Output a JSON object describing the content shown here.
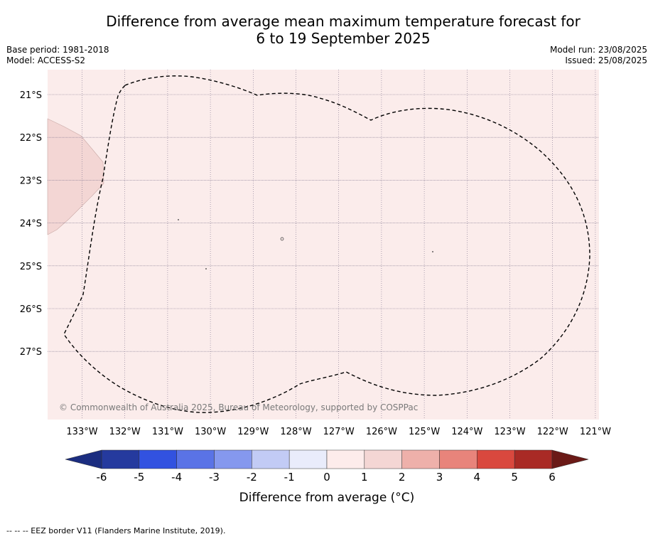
{
  "title_line1": "Difference from average mean maximum temperature forecast for",
  "title_line2": "6 to 19 September 2025",
  "base_period": "Base period: 1981-2018",
  "model": "Model: ACCESS-S2",
  "model_run": "Model run: 23/08/2025",
  "issued": "Issued: 25/08/2025",
  "copyright": "© Commonwealth of Australia 2025, Bureau of Meteorology, supported by COSPPac",
  "footer_note": "-- -- -- EEZ border V11 (Flanders Marine Institute, 2019).",
  "map": {
    "lon_labels": [
      "133°W",
      "132°W",
      "131°W",
      "130°W",
      "129°W",
      "128°W",
      "127°W",
      "126°W",
      "125°W",
      "124°W",
      "123°W",
      "122°W",
      "121°W"
    ],
    "lat_labels": [
      "21°S",
      "22°S",
      "23°S",
      "24°S",
      "25°S",
      "26°S",
      "27°S"
    ],
    "background_color": "#fbeceb",
    "anomaly_patch_color": "#f3d6d4"
  },
  "colorbar": {
    "label": "Difference from average (°C)",
    "ticks": [
      "-6",
      "-5",
      "-4",
      "-3",
      "-2",
      "-1",
      "0",
      "1",
      "2",
      "3",
      "4",
      "5",
      "6"
    ],
    "colors": [
      "#253a9e",
      "#3252e0",
      "#5a73e6",
      "#8598ee",
      "#c2cbf5",
      "#e9ecfb",
      "#fdeceb",
      "#f4d6d4",
      "#eeb0aa",
      "#e8847b",
      "#d9483e",
      "#a92a25"
    ],
    "under_color": "#1b2d80",
    "over_color": "#6b1a17"
  }
}
